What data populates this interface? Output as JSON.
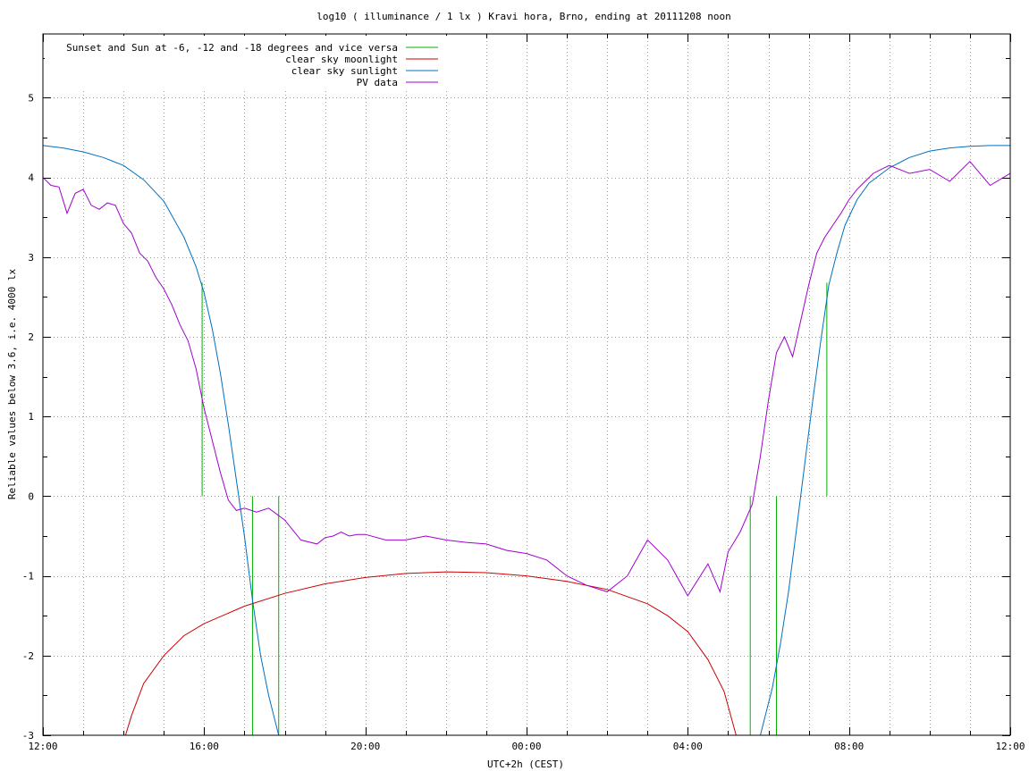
{
  "chart_data": {
    "type": "line",
    "title": "log10 ( illuminance / 1 lx ) Kravi hora, Brno, ending at 20111208 noon",
    "xlabel": "UTC+2h (CEST)",
    "ylabel": "Reliable values below 3.6, i.e. 4000 lx",
    "xlim": [
      0,
      24
    ],
    "ylim": [
      -3,
      5.8
    ],
    "x_unit": "hours after 12:00 (UTC+2h)",
    "x_tick_labels": [
      "12:00",
      "16:00",
      "20:00",
      "00:00",
      "04:00",
      "08:00",
      "12:00"
    ],
    "x_ticks": [
      0,
      4,
      8,
      12,
      16,
      20,
      24
    ],
    "y_ticks": [
      -3,
      -2,
      -1,
      0,
      1,
      2,
      3,
      4,
      5
    ],
    "y_tick_labels": [
      "-3",
      "-2",
      "-1",
      "0",
      "1",
      "2",
      "3",
      "4",
      "5"
    ],
    "grid": true,
    "legend_position": "top-left",
    "series": [
      {
        "name": "Sunset and Sun at -6, -12 and -18 degrees and vice versa",
        "color": "#00b000",
        "style": "vertical-lines",
        "lines": [
          {
            "x": 3.95,
            "y0": 0,
            "y1": 2.68
          },
          {
            "x": 5.2,
            "y0": -3,
            "y1": 0
          },
          {
            "x": 5.85,
            "y0": -3,
            "y1": 0
          },
          {
            "x": 17.55,
            "y0": -3,
            "y1": 0
          },
          {
            "x": 18.2,
            "y0": -3,
            "y1": 0
          },
          {
            "x": 19.45,
            "y0": 0,
            "y1": 2.68
          }
        ]
      },
      {
        "name": "clear sky moonlight",
        "color": "#cc0000",
        "x": [
          2.05,
          2.2,
          2.5,
          3.0,
          3.5,
          4.0,
          5.0,
          6.0,
          7.0,
          8.0,
          9.0,
          10.0,
          11.0,
          12.0,
          13.0,
          14.0,
          15.0,
          15.5,
          16.0,
          16.5,
          16.9,
          17.2
        ],
        "values": [
          -3.0,
          -2.75,
          -2.35,
          -2.0,
          -1.75,
          -1.6,
          -1.38,
          -1.22,
          -1.1,
          -1.02,
          -0.97,
          -0.95,
          -0.96,
          -1.0,
          -1.07,
          -1.17,
          -1.35,
          -1.5,
          -1.7,
          -2.05,
          -2.45,
          -3.0
        ]
      },
      {
        "name": "clear sky sunlight",
        "color": "#0070c0",
        "x": [
          0.0,
          0.5,
          1.0,
          1.5,
          2.0,
          2.5,
          3.0,
          3.5,
          3.8,
          4.0,
          4.2,
          4.4,
          4.6,
          4.8,
          5.0,
          5.2,
          5.4,
          5.6,
          5.85,
          17.8,
          18.1,
          18.3,
          18.5,
          18.7,
          18.9,
          19.1,
          19.3,
          19.5,
          19.7,
          19.9,
          20.2,
          20.5,
          21.0,
          21.5,
          22.0,
          22.5,
          23.0,
          23.5,
          24.0
        ],
        "values": [
          4.4,
          4.37,
          4.32,
          4.25,
          4.15,
          3.97,
          3.7,
          3.25,
          2.88,
          2.55,
          2.1,
          1.55,
          0.9,
          0.2,
          -0.5,
          -1.3,
          -2.0,
          -2.5,
          -3.0,
          -3.0,
          -2.4,
          -1.85,
          -1.2,
          -0.4,
          0.4,
          1.2,
          1.95,
          2.65,
          3.05,
          3.4,
          3.72,
          3.93,
          4.12,
          4.25,
          4.33,
          4.37,
          4.39,
          4.4,
          4.4
        ]
      },
      {
        "name": "PV data",
        "color": "#a000d0",
        "x": [
          0.0,
          0.2,
          0.4,
          0.6,
          0.8,
          1.0,
          1.2,
          1.4,
          1.6,
          1.8,
          2.0,
          2.2,
          2.4,
          2.6,
          2.8,
          3.0,
          3.2,
          3.4,
          3.6,
          3.8,
          4.0,
          4.2,
          4.4,
          4.6,
          4.8,
          5.0,
          5.3,
          5.6,
          6.0,
          6.4,
          6.8,
          7.0,
          7.2,
          7.4,
          7.6,
          7.8,
          8.0,
          8.5,
          9.0,
          9.5,
          10.0,
          10.5,
          11.0,
          11.5,
          12.0,
          12.5,
          13.0,
          13.5,
          14.0,
          14.5,
          15.0,
          15.5,
          16.0,
          16.5,
          16.8,
          17.0,
          17.3,
          17.6,
          17.8,
          18.0,
          18.2,
          18.4,
          18.6,
          18.8,
          19.0,
          19.2,
          19.4,
          19.6,
          19.8,
          20.0,
          20.2,
          20.4,
          20.6,
          20.8,
          21.0,
          21.5,
          22.0,
          22.5,
          23.0,
          23.5,
          24.0
        ],
        "values": [
          4.0,
          3.9,
          3.88,
          3.55,
          3.8,
          3.85,
          3.65,
          3.6,
          3.68,
          3.65,
          3.42,
          3.3,
          3.05,
          2.95,
          2.75,
          2.6,
          2.4,
          2.15,
          1.95,
          1.6,
          1.1,
          0.7,
          0.3,
          -0.05,
          -0.18,
          -0.15,
          -0.2,
          -0.15,
          -0.3,
          -0.55,
          -0.6,
          -0.52,
          -0.5,
          -0.45,
          -0.5,
          -0.48,
          -0.48,
          -0.55,
          -0.55,
          -0.5,
          -0.55,
          -0.58,
          -0.6,
          -0.68,
          -0.72,
          -0.8,
          -1.0,
          -1.12,
          -1.2,
          -1.0,
          -0.55,
          -0.8,
          -1.25,
          -0.85,
          -1.2,
          -0.7,
          -0.45,
          -0.1,
          0.5,
          1.2,
          1.8,
          2.0,
          1.75,
          2.2,
          2.65,
          3.05,
          3.25,
          3.4,
          3.55,
          3.72,
          3.85,
          3.95,
          4.05,
          4.1,
          4.15,
          4.05,
          4.1,
          3.95,
          4.2,
          3.9,
          4.05
        ]
      }
    ]
  }
}
